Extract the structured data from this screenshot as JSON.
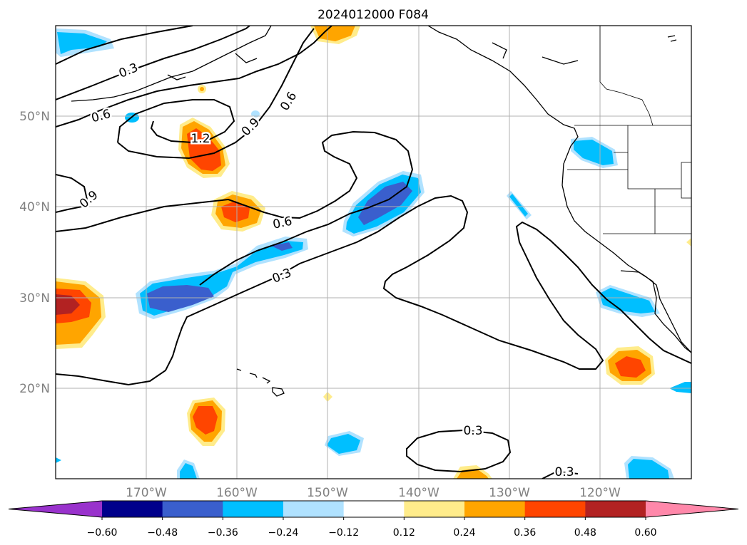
{
  "title": "2024012000 F084",
  "lat_labels": [
    "50°N",
    "40°N",
    "30°N",
    "20°N"
  ],
  "lon_labels": [
    "170°W",
    "160°W",
    "150°W",
    "140°W",
    "130°W",
    "120°W"
  ],
  "contour_labels": [
    "0.3",
    "0.6",
    "0.9",
    "1.2",
    "0.9",
    "0.6",
    "0.6",
    "0.3",
    "0.3",
    "0.3"
  ],
  "colorbar": {
    "ticks": [
      "−0.60",
      "−0.48",
      "−0.36",
      "−0.24",
      "−0.12",
      "0.12",
      "0.24",
      "0.36",
      "0.48",
      "0.60"
    ],
    "colors": [
      "#9932cc",
      "#00008b",
      "#3a5fcd",
      "#00bfff",
      "#b0e2ff",
      "#ffffff",
      "#ffec8b",
      "#ffa500",
      "#ff4500",
      "#b22222",
      "#ff88aa"
    ]
  },
  "chart_data": {
    "type": "map-contour",
    "title": "2024012000 F084",
    "lon_range_deg": [
      -180,
      -110
    ],
    "lat_range_deg": [
      10,
      60
    ],
    "grid": true,
    "shading_levels": [
      -0.6,
      -0.48,
      -0.36,
      -0.24,
      -0.12,
      0.12,
      0.24,
      0.36,
      0.48,
      0.6
    ],
    "contour_levels_drawn": [
      0.3,
      0.6,
      0.9,
      1.2
    ]
  }
}
